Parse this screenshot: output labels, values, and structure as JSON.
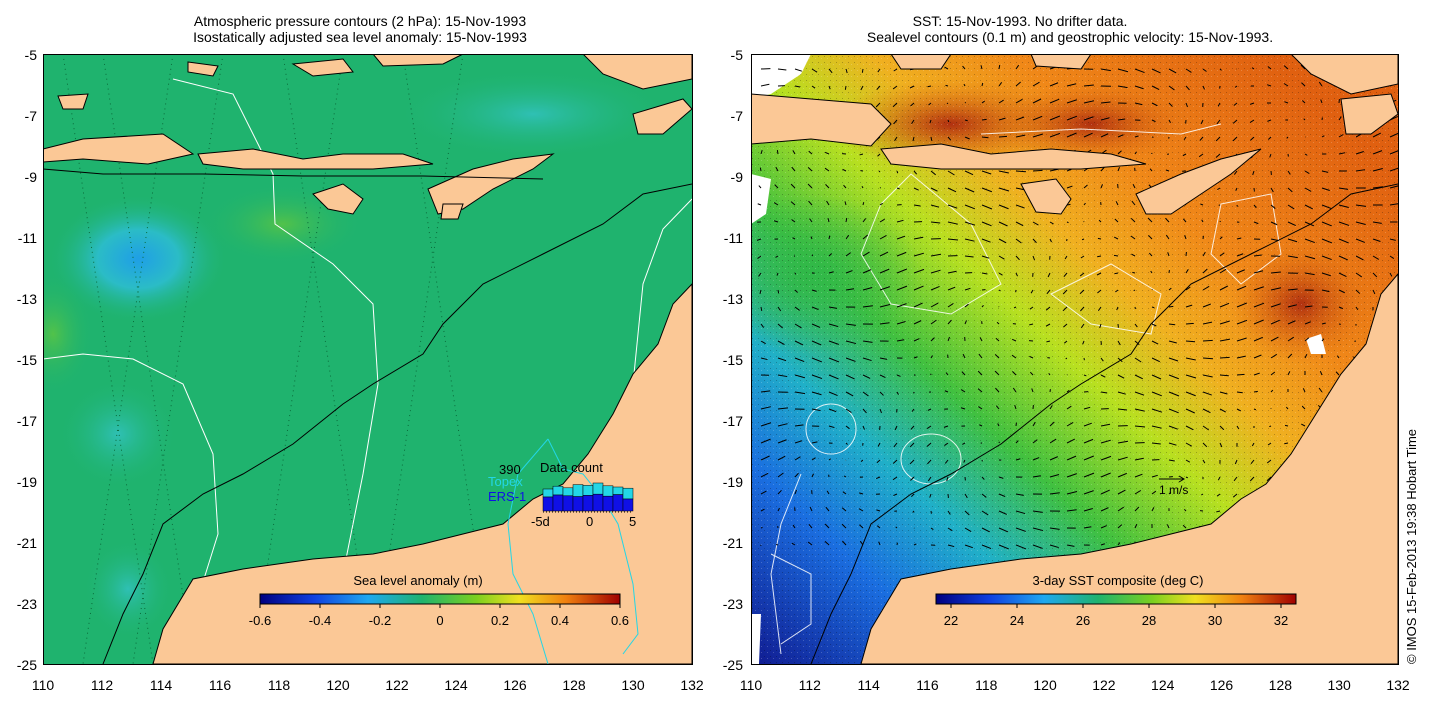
{
  "left_panel": {
    "title_line1": "Atmospheric pressure contours (2 hPa): 15-Nov-1993",
    "title_line2": "Isostatically adjusted sea level anomaly: 15-Nov-1993",
    "colorbar_label": "Sea level anomaly (m)",
    "colorbar_ticks": [
      "-0.6",
      "-0.4",
      "-0.2",
      "0",
      "0.2",
      "0.4",
      "0.6"
    ],
    "inset": {
      "title": "Data count",
      "count": "390",
      "series_topex": "Topex",
      "series_ers": "ERS-1",
      "x_ticks": [
        "-5d",
        "0",
        "5"
      ],
      "topex_values": [
        0.55,
        0.62,
        0.58,
        0.66,
        0.64,
        0.7,
        0.63,
        0.6,
        0.57
      ],
      "ers_values": [
        0.35,
        0.4,
        0.38,
        0.36,
        0.39,
        0.42,
        0.37,
        0.41,
        0.3
      ]
    }
  },
  "right_panel": {
    "title_line1": "SST: 15-Nov-1993. No drifter data.",
    "title_line2": "Sealevel contours (0.1 m) and geostrophic velocity: 15-Nov-1993.",
    "colorbar_label": "3-day SST composite (deg C)",
    "colorbar_ticks": [
      "22",
      "24",
      "26",
      "28",
      "30",
      "32"
    ],
    "scale_arrow_label": "1 m/s"
  },
  "axes": {
    "lat_ticks": [
      "-5",
      "-7",
      "-9",
      "-11",
      "-13",
      "-15",
      "-17",
      "-19",
      "-21",
      "-23",
      "-25"
    ],
    "lon_ticks": [
      "110",
      "112",
      "114",
      "116",
      "118",
      "120",
      "122",
      "124",
      "126",
      "128",
      "130",
      "132"
    ]
  },
  "credit": "© IMOS 15-Feb-2013 19:38 Hobart Time",
  "colors": {
    "land": "#fbc896",
    "ocean_green": "#1fb36e",
    "ocean_cool": "#35bfb0",
    "topex": "#23d6e6",
    "ers": "#1010e6"
  }
}
